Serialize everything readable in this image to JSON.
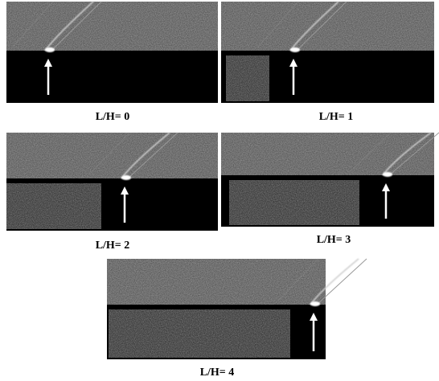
{
  "figure": {
    "panels": [
      {
        "caption": "L/H= 0"
      },
      {
        "caption": "L/H= 1"
      },
      {
        "caption": "L/H= 2"
      },
      {
        "caption": "L/H= 3"
      },
      {
        "caption": "L/H= 4"
      }
    ]
  }
}
